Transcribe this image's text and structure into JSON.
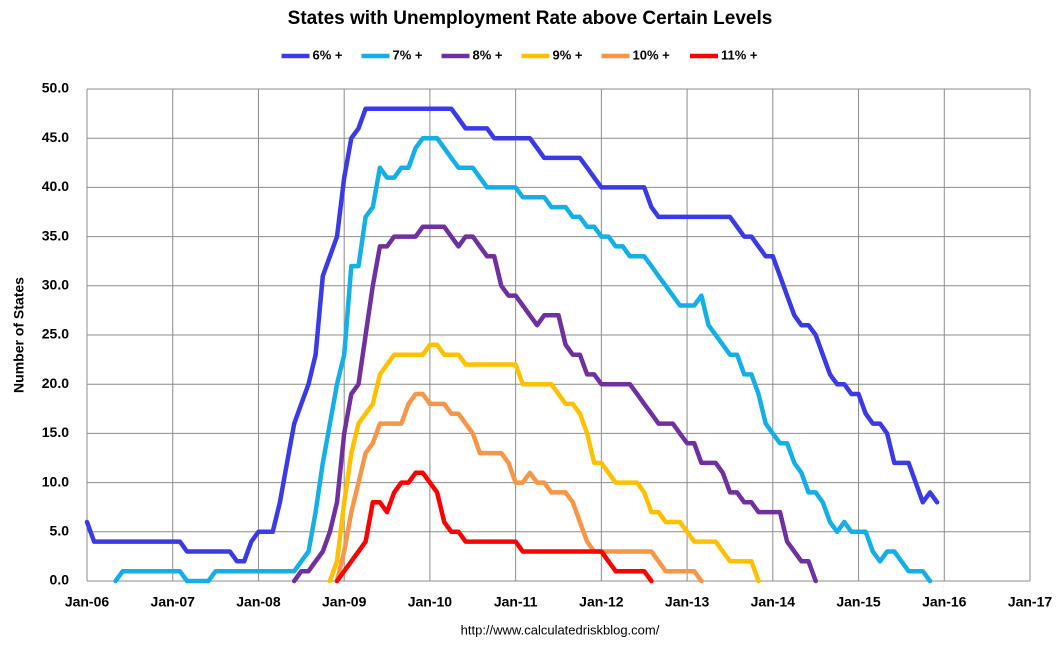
{
  "chart_data": {
    "type": "line",
    "title": "States with Unemployment Rate above Certain Levels",
    "y_label": "Number of States",
    "source": "http://www.calculatedriskblog.com/",
    "grid": true,
    "legend": "top",
    "x": [
      "2006-01",
      "2006-02",
      "2006-03",
      "2006-04",
      "2006-05",
      "2006-06",
      "2006-07",
      "2006-08",
      "2006-09",
      "2006-10",
      "2006-11",
      "2006-12",
      "2007-01",
      "2007-02",
      "2007-03",
      "2007-04",
      "2007-05",
      "2007-06",
      "2007-07",
      "2007-08",
      "2007-09",
      "2007-10",
      "2007-11",
      "2007-12",
      "2008-01",
      "2008-02",
      "2008-03",
      "2008-04",
      "2008-05",
      "2008-06",
      "2008-07",
      "2008-08",
      "2008-09",
      "2008-10",
      "2008-11",
      "2008-12",
      "2009-01",
      "2009-02",
      "2009-03",
      "2009-04",
      "2009-05",
      "2009-06",
      "2009-07",
      "2009-08",
      "2009-09",
      "2009-10",
      "2009-11",
      "2009-12",
      "2010-01",
      "2010-02",
      "2010-03",
      "2010-04",
      "2010-05",
      "2010-06",
      "2010-07",
      "2010-08",
      "2010-09",
      "2010-10",
      "2010-11",
      "2010-12",
      "2011-01",
      "2011-02",
      "2011-03",
      "2011-04",
      "2011-05",
      "2011-06",
      "2011-07",
      "2011-08",
      "2011-09",
      "2011-10",
      "2011-11",
      "2011-12",
      "2012-01",
      "2012-02",
      "2012-03",
      "2012-04",
      "2012-05",
      "2012-06",
      "2012-07",
      "2012-08",
      "2012-09",
      "2012-10",
      "2012-11",
      "2012-12",
      "2013-01",
      "2013-02",
      "2013-03",
      "2013-04",
      "2013-05",
      "2013-06",
      "2013-07",
      "2013-08",
      "2013-09",
      "2013-10",
      "2013-11",
      "2013-12",
      "2014-01",
      "2014-02",
      "2014-03",
      "2014-04",
      "2014-05",
      "2014-06",
      "2014-07",
      "2014-08",
      "2014-09",
      "2014-10",
      "2014-11",
      "2014-12",
      "2015-01",
      "2015-02",
      "2015-03",
      "2015-04",
      "2015-05",
      "2015-06",
      "2015-07",
      "2015-08",
      "2015-09",
      "2015-10",
      "2015-11",
      "2015-12"
    ],
    "xlim": [
      "2006-01",
      "2017-01"
    ],
    "xticks": [
      {
        "value": "2006-01",
        "label": "Jan-06"
      },
      {
        "value": "2007-01",
        "label": "Jan-07"
      },
      {
        "value": "2008-01",
        "label": "Jan-08"
      },
      {
        "value": "2009-01",
        "label": "Jan-09"
      },
      {
        "value": "2010-01",
        "label": "Jan-10"
      },
      {
        "value": "2011-01",
        "label": "Jan-11"
      },
      {
        "value": "2012-01",
        "label": "Jan-12"
      },
      {
        "value": "2013-01",
        "label": "Jan-13"
      },
      {
        "value": "2014-01",
        "label": "Jan-14"
      },
      {
        "value": "2015-01",
        "label": "Jan-15"
      },
      {
        "value": "2016-01",
        "label": "Jan-16"
      },
      {
        "value": "2017-01",
        "label": "Jan-17"
      }
    ],
    "ylim": [
      0,
      50
    ],
    "yticks": [
      {
        "value": 0,
        "label": "0.0"
      },
      {
        "value": 5,
        "label": "5.0"
      },
      {
        "value": 10,
        "label": "10.0"
      },
      {
        "value": 15,
        "label": "15.0"
      },
      {
        "value": 20,
        "label": "20.0"
      },
      {
        "value": 25,
        "label": "25.0"
      },
      {
        "value": 30,
        "label": "30.0"
      },
      {
        "value": 35,
        "label": "35.0"
      },
      {
        "value": 40,
        "label": "40.0"
      },
      {
        "value": 45,
        "label": "45.0"
      },
      {
        "value": 50,
        "label": "50.0"
      }
    ],
    "series": [
      {
        "name": "6% +",
        "color": "#3a3ae8",
        "values": [
          6,
          4,
          4,
          4,
          4,
          4,
          4,
          4,
          4,
          4,
          4,
          4,
          4,
          4,
          3,
          3,
          3,
          3,
          3,
          3,
          3,
          2,
          2,
          4,
          5,
          5,
          5,
          8,
          12,
          16,
          18,
          20,
          23,
          31,
          33,
          35,
          41,
          45,
          46,
          48,
          48,
          48,
          48,
          48,
          48,
          48,
          48,
          48,
          48,
          48,
          48,
          48,
          47,
          46,
          46,
          46,
          46,
          45,
          45,
          45,
          45,
          45,
          45,
          44,
          43,
          43,
          43,
          43,
          43,
          43,
          42,
          41,
          40,
          40,
          40,
          40,
          40,
          40,
          40,
          38,
          37,
          37,
          37,
          37,
          37,
          37,
          37,
          37,
          37,
          37,
          37,
          36,
          35,
          35,
          34,
          33,
          33,
          31,
          29,
          27,
          26,
          26,
          25,
          23,
          21,
          20,
          20,
          19,
          19,
          17,
          16,
          16,
          15,
          12,
          12,
          12,
          10,
          8,
          9,
          8
        ]
      },
      {
        "name": "7% +",
        "color": "#14afe6",
        "values": [
          null,
          null,
          null,
          null,
          0,
          1,
          1,
          1,
          1,
          1,
          1,
          1,
          1,
          1,
          0,
          0,
          0,
          0,
          1,
          1,
          1,
          1,
          1,
          1,
          1,
          1,
          1,
          1,
          1,
          1,
          2,
          3,
          7,
          12,
          16,
          20,
          23,
          32,
          32,
          37,
          38,
          42,
          41,
          41,
          42,
          42,
          44,
          45,
          45,
          45,
          44,
          43,
          42,
          42,
          42,
          41,
          40,
          40,
          40,
          40,
          40,
          39,
          39,
          39,
          39,
          38,
          38,
          38,
          37,
          37,
          36,
          36,
          35,
          35,
          34,
          34,
          33,
          33,
          33,
          32,
          31,
          30,
          29,
          28,
          28,
          28,
          29,
          26,
          25,
          24,
          23,
          23,
          21,
          21,
          19,
          16,
          15,
          14,
          14,
          12,
          11,
          9,
          9,
          8,
          6,
          5,
          6,
          5,
          5,
          5,
          3,
          2,
          3,
          3,
          2,
          1,
          1,
          1,
          0,
          null
        ]
      },
      {
        "name": "8% +",
        "color": "#7030a0",
        "values": [
          null,
          null,
          null,
          null,
          null,
          null,
          null,
          null,
          null,
          null,
          null,
          null,
          null,
          null,
          null,
          null,
          null,
          null,
          null,
          null,
          null,
          null,
          null,
          null,
          null,
          null,
          null,
          null,
          null,
          0,
          1,
          1,
          2,
          3,
          5,
          8,
          15,
          19,
          20,
          25,
          30,
          34,
          34,
          35,
          35,
          35,
          35,
          36,
          36,
          36,
          36,
          35,
          34,
          35,
          35,
          34,
          33,
          33,
          30,
          29,
          29,
          28,
          27,
          26,
          27,
          27,
          27,
          24,
          23,
          23,
          21,
          21,
          20,
          20,
          20,
          20,
          20,
          19,
          18,
          17,
          16,
          16,
          16,
          15,
          14,
          14,
          12,
          12,
          12,
          11,
          9,
          9,
          8,
          8,
          7,
          7,
          7,
          7,
          4,
          3,
          2,
          2,
          0,
          null,
          null,
          null,
          null,
          null,
          null,
          null,
          null,
          null,
          null,
          null,
          null,
          null,
          null,
          null,
          null,
          null
        ]
      },
      {
        "name": "9% +",
        "color": "#ffc000",
        "values": [
          null,
          null,
          null,
          null,
          null,
          null,
          null,
          null,
          null,
          null,
          null,
          null,
          null,
          null,
          null,
          null,
          null,
          null,
          null,
          null,
          null,
          null,
          null,
          null,
          null,
          null,
          null,
          null,
          null,
          null,
          null,
          null,
          null,
          null,
          0,
          2,
          8,
          13,
          16,
          17,
          18,
          21,
          22,
          23,
          23,
          23,
          23,
          23,
          24,
          24,
          23,
          23,
          23,
          22,
          22,
          22,
          22,
          22,
          22,
          22,
          22,
          20,
          20,
          20,
          20,
          20,
          19,
          18,
          18,
          17,
          15,
          12,
          12,
          11,
          10,
          10,
          10,
          10,
          9,
          7,
          7,
          6,
          6,
          6,
          5,
          4,
          4,
          4,
          4,
          3,
          2,
          2,
          2,
          2,
          0,
          null,
          null,
          null,
          null,
          null,
          null,
          null,
          null,
          null,
          null,
          null,
          null,
          null,
          null,
          null,
          null,
          null,
          null,
          null,
          null,
          null,
          null,
          null,
          null,
          null
        ]
      },
      {
        "name": "10% +",
        "color": "#f79646",
        "values": [
          null,
          null,
          null,
          null,
          null,
          null,
          null,
          null,
          null,
          null,
          null,
          null,
          null,
          null,
          null,
          null,
          null,
          null,
          null,
          null,
          null,
          null,
          null,
          null,
          null,
          null,
          null,
          null,
          null,
          null,
          null,
          null,
          null,
          null,
          null,
          0,
          3,
          7,
          10,
          13,
          14,
          16,
          16,
          16,
          16,
          18,
          19,
          19,
          18,
          18,
          18,
          17,
          17,
          16,
          15,
          13,
          13,
          13,
          13,
          12,
          10,
          10,
          11,
          10,
          10,
          9,
          9,
          9,
          8,
          6,
          4,
          3,
          3,
          3,
          3,
          3,
          3,
          3,
          3,
          3,
          2,
          1,
          1,
          1,
          1,
          1,
          0,
          null,
          null,
          null,
          null,
          null,
          null,
          null,
          null,
          null,
          null,
          null,
          null,
          null,
          null,
          null,
          null,
          null,
          null,
          null,
          null,
          null,
          null,
          null,
          null,
          null,
          null,
          null,
          null,
          null,
          null,
          null,
          null,
          null
        ]
      },
      {
        "name": "11% +",
        "color": "#ff0000",
        "values": [
          null,
          null,
          null,
          null,
          null,
          null,
          null,
          null,
          null,
          null,
          null,
          null,
          null,
          null,
          null,
          null,
          null,
          null,
          null,
          null,
          null,
          null,
          null,
          null,
          null,
          null,
          null,
          null,
          null,
          null,
          null,
          null,
          null,
          null,
          null,
          0,
          1,
          2,
          3,
          4,
          8,
          8,
          7,
          9,
          10,
          10,
          11,
          11,
          10,
          9,
          6,
          5,
          5,
          4,
          4,
          4,
          4,
          4,
          4,
          4,
          4,
          3,
          3,
          3,
          3,
          3,
          3,
          3,
          3,
          3,
          3,
          3,
          3,
          2,
          1,
          1,
          1,
          1,
          1,
          0,
          null,
          null,
          null,
          null,
          null,
          null,
          null,
          null,
          null,
          null,
          null,
          null,
          null,
          null,
          null,
          null,
          null,
          null,
          null,
          null,
          null,
          null,
          null,
          null,
          null,
          null,
          null,
          null,
          null,
          null,
          null,
          null,
          null,
          null,
          null,
          null,
          null,
          null,
          null,
          null
        ]
      }
    ]
  }
}
